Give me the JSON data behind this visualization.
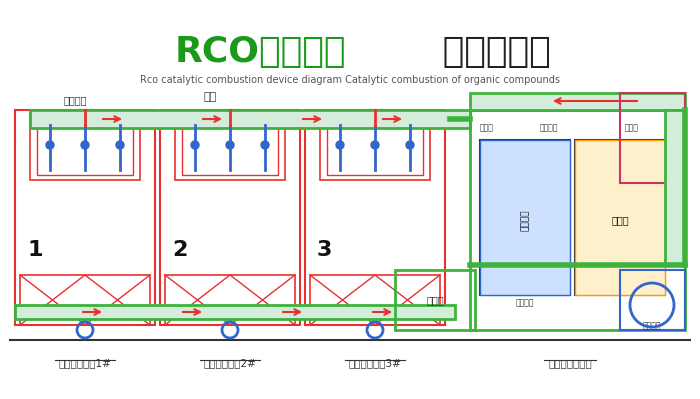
{
  "title_green": "RCO催化燃燒",
  "title_black": " 工作裝置圖",
  "subtitle": "Rco catalytic combustion device diagram Catalytic combustion of organic compounds",
  "bg_color": "#ffffff",
  "label1": "活性炭吸附塔1#",
  "label2": "活性炭吸附塔2#",
  "label3": "活性炭吸附塔3#",
  "label4": "催化燃燒凈化塔",
  "label_airflow": "氣流方向",
  "label_pipe": "管道",
  "label_turbulence": "湍流箱",
  "label_oilfilm": "油膜片",
  "label_heatex": "熱交換器",
  "label_oilpump": "油循環",
  "label_catalyst": "催化燃燒",
  "label_heating": "加熱區",
  "label_coolingfan": "冷卻風機",
  "label_indfan": "誘導風機",
  "red": "#e83030",
  "green": "#3db33d",
  "blue": "#3366cc",
  "darkblue": "#0000cc",
  "orange": "#ff9900",
  "pink": "#cc3366",
  "gray": "#888888",
  "lightred": "#ffaaaa",
  "title_green_color": "#1a9a1a",
  "title_black_color": "#222222"
}
